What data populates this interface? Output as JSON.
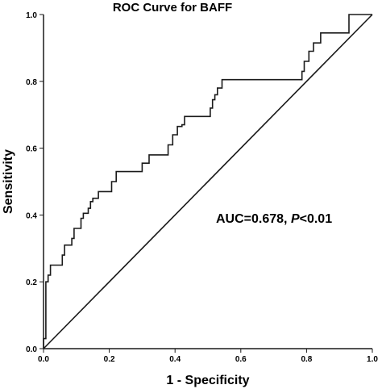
{
  "chart_data": {
    "type": "line",
    "title": "ROC Curve for BAFF",
    "xlabel": "1 - Specificity",
    "ylabel": "Sensitivity",
    "xlim": [
      0,
      1
    ],
    "ylim": [
      0,
      1
    ],
    "x_ticks": [
      "0.0",
      "0.2",
      "0.4",
      "0.6",
      "0.8",
      "1.0"
    ],
    "y_ticks": [
      "0.0",
      "0.2",
      "0.4",
      "0.6",
      "0.8",
      "1.0"
    ],
    "grid": false,
    "annotation": {
      "prefix": "AUC=0.678, ",
      "italic": "P",
      "suffix": "<0.01"
    },
    "series": [
      {
        "name": "",
        "step": true,
        "points": [
          [
            0.0,
            0.0
          ],
          [
            0.0,
            0.03
          ],
          [
            0.007,
            0.03
          ],
          [
            0.007,
            0.2
          ],
          [
            0.014,
            0.2
          ],
          [
            0.014,
            0.22
          ],
          [
            0.021,
            0.22
          ],
          [
            0.021,
            0.25
          ],
          [
            0.057,
            0.25
          ],
          [
            0.057,
            0.28
          ],
          [
            0.064,
            0.28
          ],
          [
            0.064,
            0.31
          ],
          [
            0.086,
            0.31
          ],
          [
            0.086,
            0.33
          ],
          [
            0.093,
            0.33
          ],
          [
            0.093,
            0.36
          ],
          [
            0.114,
            0.36
          ],
          [
            0.114,
            0.39
          ],
          [
            0.121,
            0.39
          ],
          [
            0.121,
            0.405
          ],
          [
            0.136,
            0.405
          ],
          [
            0.136,
            0.42
          ],
          [
            0.143,
            0.42
          ],
          [
            0.143,
            0.44
          ],
          [
            0.15,
            0.44
          ],
          [
            0.15,
            0.45
          ],
          [
            0.167,
            0.45
          ],
          [
            0.167,
            0.47
          ],
          [
            0.207,
            0.47
          ],
          [
            0.207,
            0.5
          ],
          [
            0.221,
            0.5
          ],
          [
            0.221,
            0.53
          ],
          [
            0.3,
            0.53
          ],
          [
            0.3,
            0.555
          ],
          [
            0.321,
            0.555
          ],
          [
            0.321,
            0.58
          ],
          [
            0.379,
            0.58
          ],
          [
            0.379,
            0.61
          ],
          [
            0.393,
            0.61
          ],
          [
            0.393,
            0.64
          ],
          [
            0.407,
            0.64
          ],
          [
            0.407,
            0.665
          ],
          [
            0.421,
            0.665
          ],
          [
            0.421,
            0.67
          ],
          [
            0.429,
            0.67
          ],
          [
            0.429,
            0.695
          ],
          [
            0.507,
            0.695
          ],
          [
            0.507,
            0.72
          ],
          [
            0.514,
            0.72
          ],
          [
            0.514,
            0.745
          ],
          [
            0.521,
            0.745
          ],
          [
            0.521,
            0.76
          ],
          [
            0.529,
            0.76
          ],
          [
            0.529,
            0.78
          ],
          [
            0.543,
            0.78
          ],
          [
            0.543,
            0.805
          ],
          [
            0.786,
            0.805
          ],
          [
            0.786,
            0.83
          ],
          [
            0.793,
            0.83
          ],
          [
            0.793,
            0.86
          ],
          [
            0.807,
            0.86
          ],
          [
            0.807,
            0.89
          ],
          [
            0.821,
            0.89
          ],
          [
            0.821,
            0.915
          ],
          [
            0.843,
            0.915
          ],
          [
            0.843,
            0.945
          ],
          [
            0.929,
            0.945
          ],
          [
            0.929,
            1.0
          ],
          [
            1.0,
            1.0
          ]
        ]
      },
      {
        "name": "",
        "step": false,
        "points": [
          [
            0,
            0
          ],
          [
            1,
            1
          ]
        ]
      }
    ]
  }
}
